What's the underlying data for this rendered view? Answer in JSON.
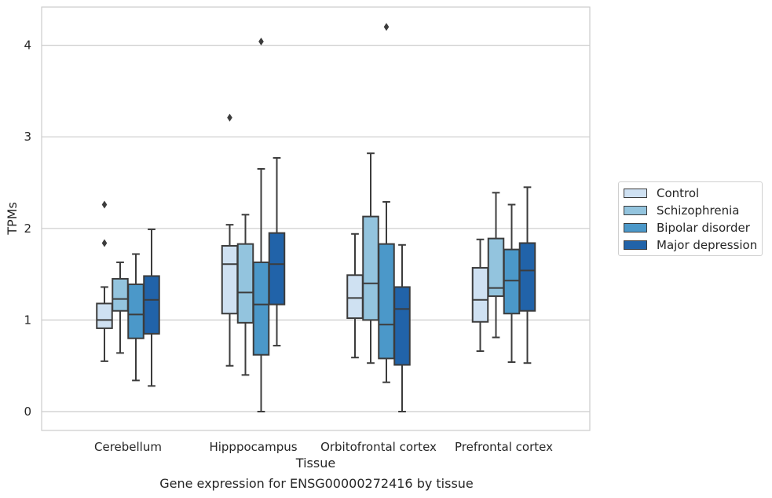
{
  "caption": "Gene expression for ENSG00000272416 by tissue",
  "colors": {
    "Control": "#cfe1f2",
    "Schizophrenia": "#93c4de",
    "Bipolar disorder": "#4b98c9",
    "Major depression": "#2163a9",
    "edge": "#3c3c3c",
    "grid": "#cccccc"
  },
  "chart_data": {
    "type": "box",
    "xlabel": "Tissue",
    "ylabel": "TPMs",
    "ylim": [
      -0.2,
      4.42
    ],
    "yticks": [
      0,
      1,
      2,
      3,
      4
    ],
    "grid": "horizontal",
    "legend_position": "right",
    "categories": [
      "Cerebellum",
      "Hipppocampus",
      "Orbitofrontal cortex",
      "Prefrontal cortex"
    ],
    "series": [
      {
        "name": "Control",
        "boxes": [
          {
            "whislo": 0.55,
            "q1": 0.91,
            "med": 1.0,
            "q3": 1.18,
            "whishi": 1.36,
            "fliers": [
              1.84,
              2.26
            ]
          },
          {
            "whislo": 0.5,
            "q1": 1.07,
            "med": 1.61,
            "q3": 1.81,
            "whishi": 2.04,
            "fliers": [
              3.21
            ]
          },
          {
            "whislo": 0.59,
            "q1": 1.02,
            "med": 1.24,
            "q3": 1.49,
            "whishi": 1.94,
            "fliers": []
          },
          {
            "whislo": 0.66,
            "q1": 0.98,
            "med": 1.22,
            "q3": 1.57,
            "whishi": 1.88,
            "fliers": []
          }
        ]
      },
      {
        "name": "Schizophrenia",
        "boxes": [
          {
            "whislo": 0.64,
            "q1": 1.1,
            "med": 1.23,
            "q3": 1.45,
            "whishi": 1.63,
            "fliers": []
          },
          {
            "whislo": 0.4,
            "q1": 0.97,
            "med": 1.3,
            "q3": 1.83,
            "whishi": 2.15,
            "fliers": []
          },
          {
            "whislo": 0.53,
            "q1": 1.0,
            "med": 1.4,
            "q3": 2.13,
            "whishi": 2.82,
            "fliers": []
          },
          {
            "whislo": 0.81,
            "q1": 1.26,
            "med": 1.35,
            "q3": 1.89,
            "whishi": 2.39,
            "fliers": []
          }
        ]
      },
      {
        "name": "Bipolar disorder",
        "boxes": [
          {
            "whislo": 0.34,
            "q1": 0.8,
            "med": 1.06,
            "q3": 1.39,
            "whishi": 1.72,
            "fliers": []
          },
          {
            "whislo": 0.0,
            "q1": 0.62,
            "med": 1.17,
            "q3": 1.63,
            "whishi": 2.65,
            "fliers": [
              4.04
            ]
          },
          {
            "whislo": 0.32,
            "q1": 0.58,
            "med": 0.95,
            "q3": 1.83,
            "whishi": 2.29,
            "fliers": [
              4.2
            ]
          },
          {
            "whislo": 0.54,
            "q1": 1.07,
            "med": 1.43,
            "q3": 1.77,
            "whishi": 2.26,
            "fliers": []
          }
        ]
      },
      {
        "name": "Major depression",
        "boxes": [
          {
            "whislo": 0.28,
            "q1": 0.85,
            "med": 1.22,
            "q3": 1.48,
            "whishi": 1.99,
            "fliers": []
          },
          {
            "whislo": 0.72,
            "q1": 1.17,
            "med": 1.61,
            "q3": 1.95,
            "whishi": 2.77,
            "fliers": []
          },
          {
            "whislo": 0.0,
            "q1": 0.51,
            "med": 1.12,
            "q3": 1.36,
            "whishi": 1.82,
            "fliers": []
          },
          {
            "whislo": 0.53,
            "q1": 1.1,
            "med": 1.54,
            "q3": 1.84,
            "whishi": 2.45,
            "fliers": []
          }
        ]
      }
    ]
  }
}
